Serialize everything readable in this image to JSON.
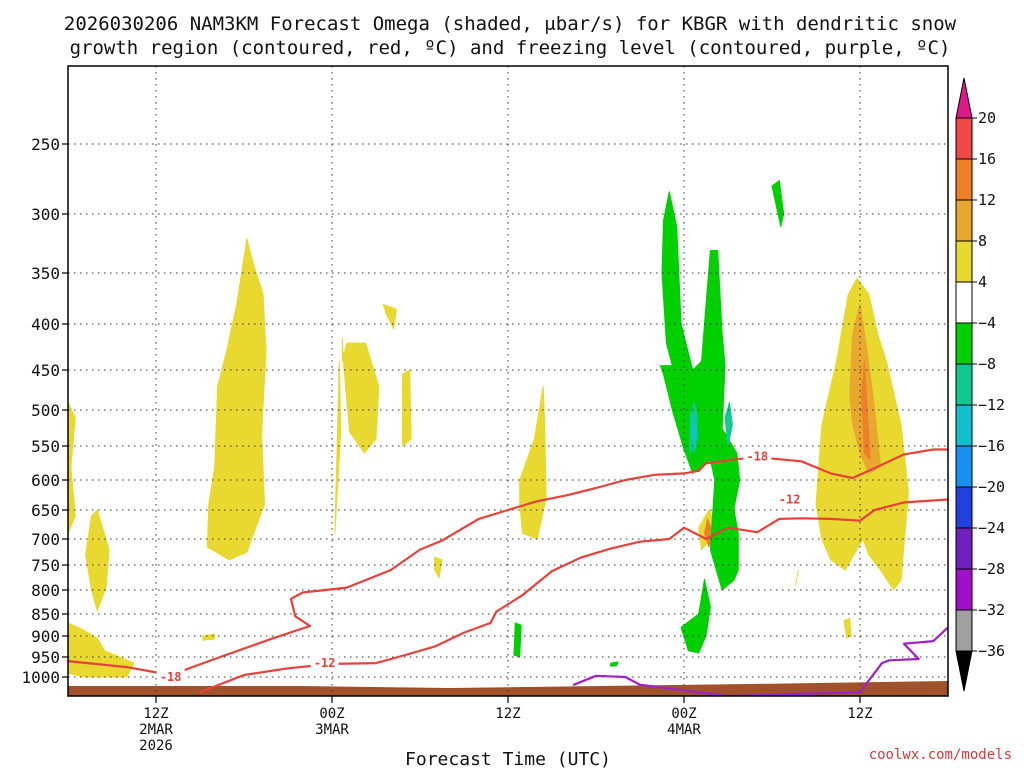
{
  "chart_data": {
    "type": "contour-time-height",
    "title_line1": "2026030206 NAM3KM Forecast Omega (shaded, μbar/s) for KBGR with dendritic snow",
    "title_line2": "growth region (contoured, red, ºC) and freezing level (contoured, purple, ºC)",
    "xlabel": "Forecast Time (UTC)",
    "credit": "coolwx.com/models",
    "x_range_hours": [
      6,
      66
    ],
    "x_ticks": [
      {
        "hour": 12,
        "lines": [
          "12Z",
          "2MAR",
          "2026"
        ]
      },
      {
        "hour": 24,
        "lines": [
          "00Z",
          "3MAR"
        ]
      },
      {
        "hour": 36,
        "lines": [
          "12Z"
        ]
      },
      {
        "hour": 48,
        "lines": [
          "00Z",
          "4MAR"
        ]
      },
      {
        "hour": 60,
        "lines": [
          "12Z"
        ]
      }
    ],
    "y_range_hPa": [
      1025,
      200
    ],
    "y_ticks": [
      250,
      300,
      350,
      400,
      450,
      500,
      550,
      600,
      650,
      700,
      750,
      800,
      850,
      900,
      950,
      1000
    ],
    "colorbar": {
      "labels": [
        "20",
        "16",
        "12",
        "8",
        "4",
        "−4",
        "−8",
        "−12",
        "−16",
        "−20",
        "−24",
        "−28",
        "−32",
        "−36"
      ],
      "bins": [
        {
          "lo": 20,
          "hi": 99,
          "color": "#e0198a"
        },
        {
          "lo": 16,
          "hi": 20,
          "color": "#f04848"
        },
        {
          "lo": 12,
          "hi": 16,
          "color": "#f08028"
        },
        {
          "lo": 8,
          "hi": 12,
          "color": "#e8a830"
        },
        {
          "lo": 4,
          "hi": 8,
          "color": "#e8d830"
        },
        {
          "lo": -4,
          "hi": 4,
          "color": "#ffffff"
        },
        {
          "lo": -8,
          "hi": -4,
          "color": "#00d000"
        },
        {
          "lo": -12,
          "hi": -8,
          "color": "#10c890"
        },
        {
          "lo": -16,
          "hi": -12,
          "color": "#10c0d0"
        },
        {
          "lo": -20,
          "hi": -16,
          "color": "#1890f0"
        },
        {
          "lo": -24,
          "hi": -20,
          "color": "#2040e0"
        },
        {
          "lo": -28,
          "hi": -24,
          "color": "#7020c0"
        },
        {
          "lo": -32,
          "hi": -28,
          "color": "#a010c8"
        },
        {
          "lo": -36,
          "hi": -32,
          "color": "#a0a0a0"
        },
        {
          "lo": -99,
          "hi": -36,
          "color": "#000000"
        }
      ]
    },
    "contour_labels": [
      {
        "text": "-18",
        "hour": 13,
        "hPa": 1000
      },
      {
        "text": "-12",
        "hour": 23.5,
        "hPa": 965
      },
      {
        "text": "-18",
        "hour": 53,
        "hPa": 565
      },
      {
        "text": "-12",
        "hour": 55.2,
        "hPa": 632
      }
    ],
    "isotherm_minus18": [
      [
        6,
        960
      ],
      [
        10,
        975
      ],
      [
        13,
        995
      ],
      [
        16,
        955
      ],
      [
        20,
        905
      ],
      [
        22.5,
        877
      ],
      [
        21.5,
        855
      ],
      [
        21.2,
        818
      ],
      [
        22,
        805
      ],
      [
        25,
        795
      ],
      [
        28,
        760
      ],
      [
        30,
        720
      ],
      [
        31.5,
        703
      ],
      [
        34,
        665
      ],
      [
        36,
        650
      ],
      [
        38,
        635
      ],
      [
        40,
        625
      ],
      [
        42,
        613
      ],
      [
        44,
        600
      ],
      [
        46,
        592
      ],
      [
        48,
        590
      ],
      [
        49,
        586
      ],
      [
        49.5,
        575
      ],
      [
        51.5,
        569
      ],
      [
        53,
        566
      ],
      [
        56,
        572
      ],
      [
        58,
        590
      ],
      [
        59.5,
        597
      ],
      [
        61,
        582
      ],
      [
        63,
        562
      ],
      [
        65,
        555
      ],
      [
        66,
        555
      ]
    ],
    "isotherm_minus12": [
      [
        15,
        1020
      ],
      [
        18,
        995
      ],
      [
        21,
        978
      ],
      [
        24,
        967
      ],
      [
        27,
        965
      ],
      [
        29,
        945
      ],
      [
        31,
        925
      ],
      [
        33,
        892
      ],
      [
        34.8,
        870
      ],
      [
        35.2,
        845
      ],
      [
        37,
        810
      ],
      [
        39,
        762
      ],
      [
        41,
        735
      ],
      [
        43,
        718
      ],
      [
        45,
        705
      ],
      [
        47,
        700
      ],
      [
        48,
        680
      ],
      [
        49,
        693
      ],
      [
        49.5,
        700
      ],
      [
        51,
        680
      ],
      [
        53,
        688
      ],
      [
        54.5,
        665
      ],
      [
        56,
        664
      ],
      [
        58,
        665
      ],
      [
        60,
        668
      ],
      [
        61,
        650
      ],
      [
        63,
        637
      ],
      [
        66,
        632
      ]
    ],
    "freezing_level": [
      [
        40.5,
        1010
      ],
      [
        42,
        997
      ],
      [
        44,
        1000
      ],
      [
        45,
        1010
      ],
      [
        51,
        1027
      ],
      [
        60,
        1020
      ],
      [
        61.5,
        965
      ],
      [
        62,
        958
      ],
      [
        64,
        955
      ],
      [
        63,
        918
      ],
      [
        65,
        912
      ],
      [
        66,
        880
      ]
    ],
    "omega_areas": [
      {
        "value": 5,
        "pts": [
          [
            6,
            490
          ],
          [
            6.5,
            510
          ],
          [
            6.2,
            580
          ],
          [
            6.5,
            660
          ],
          [
            6,
            690
          ]
        ]
      },
      {
        "value": 5,
        "pts": [
          [
            7.2,
            730
          ],
          [
            7.6,
            660
          ],
          [
            8,
            650
          ],
          [
            8.8,
            720
          ],
          [
            8.6,
            795
          ],
          [
            8,
            843
          ],
          [
            7.6,
            800
          ]
        ]
      },
      {
        "value": 5,
        "pts": [
          [
            6,
            870
          ],
          [
            7,
            885
          ],
          [
            8,
            905
          ],
          [
            8.5,
            935
          ],
          [
            10.5,
            965
          ],
          [
            10,
            1000
          ],
          [
            7,
            1000
          ],
          [
            6,
            990
          ]
        ]
      },
      {
        "value": 5,
        "pts": [
          [
            15.5,
            715
          ],
          [
            15.6,
            640
          ],
          [
            16,
            580
          ],
          [
            16.2,
            470
          ],
          [
            16.8,
            430
          ],
          [
            17.5,
            380
          ],
          [
            18.2,
            320
          ],
          [
            18.6,
            340
          ],
          [
            19.3,
            370
          ],
          [
            19.5,
            430
          ],
          [
            19.2,
            530
          ],
          [
            19.4,
            640
          ],
          [
            18.2,
            725
          ],
          [
            17,
            740
          ]
        ]
      },
      {
        "value": 5,
        "pts": [
          [
            15.2,
            900
          ],
          [
            16,
            895
          ],
          [
            16,
            907
          ],
          [
            15.2,
            910
          ]
        ]
      },
      {
        "value": 5,
        "pts": [
          [
            24.7,
            415
          ],
          [
            24.8,
            445
          ],
          [
            25.2,
            530
          ],
          [
            26.2,
            560
          ],
          [
            27,
            540
          ],
          [
            27.2,
            470
          ],
          [
            26.3,
            420
          ],
          [
            25,
            420
          ],
          [
            24.7,
            440
          ]
        ]
      },
      {
        "value": 5,
        "pts": [
          [
            24.2,
            690
          ],
          [
            24.6,
            530
          ],
          [
            24.5,
            440
          ]
        ]
      },
      {
        "value": 5,
        "pts": [
          [
            27.5,
            380
          ],
          [
            28.4,
            385
          ],
          [
            28.2,
            405
          ],
          [
            27.7,
            390
          ]
        ]
      },
      {
        "value": 5,
        "pts": [
          [
            28.8,
            455
          ],
          [
            29.3,
            450
          ],
          [
            29.4,
            540
          ],
          [
            28.8,
            550
          ]
        ]
      },
      {
        "value": 5,
        "pts": [
          [
            36.8,
            600
          ],
          [
            37.8,
            540
          ],
          [
            38.4,
            470
          ],
          [
            38.5,
            520
          ],
          [
            38.6,
            630
          ],
          [
            38,
            700
          ],
          [
            37,
            690
          ],
          [
            36.8,
            640
          ]
        ]
      },
      {
        "value": 5,
        "pts": [
          [
            31,
            735
          ],
          [
            31.5,
            740
          ],
          [
            31.3,
            775
          ],
          [
            31,
            760
          ]
        ]
      },
      {
        "value": 5,
        "pts": [
          [
            55.6,
            790
          ],
          [
            55.8,
            760
          ]
        ]
      },
      {
        "value": 5,
        "pts": [
          [
            57,
            640
          ],
          [
            57.4,
            520
          ],
          [
            58.4,
            440
          ],
          [
            59.2,
            370
          ],
          [
            59.8,
            355
          ],
          [
            60.6,
            370
          ],
          [
            61.2,
            410
          ],
          [
            61.8,
            440
          ],
          [
            62.8,
            520
          ],
          [
            63.3,
            620
          ],
          [
            62.8,
            780
          ],
          [
            62.3,
            800
          ],
          [
            61.4,
            760
          ],
          [
            60.6,
            730
          ],
          [
            60.2,
            700
          ],
          [
            59,
            760
          ],
          [
            58,
            740
          ],
          [
            57.4,
            700
          ]
        ]
      },
      {
        "value": 5,
        "pts": [
          [
            58.9,
            865
          ],
          [
            59.3,
            860
          ],
          [
            59.4,
            900
          ],
          [
            59.1,
            905
          ]
        ]
      },
      {
        "value": 5,
        "pts": [
          [
            49,
            680
          ],
          [
            49.7,
            650
          ],
          [
            50.3,
            680
          ],
          [
            50.2,
            720
          ],
          [
            49.7,
            705
          ],
          [
            49.2,
            720
          ]
        ]
      },
      {
        "value": 9,
        "pts": [
          [
            59.3,
            480
          ],
          [
            59.5,
            410
          ],
          [
            60,
            380
          ],
          [
            60.5,
            430
          ],
          [
            61,
            500
          ],
          [
            61.4,
            580
          ],
          [
            60.6,
            590
          ],
          [
            60,
            560
          ],
          [
            59.5,
            520
          ]
        ]
      },
      {
        "value": 13,
        "pts": [
          [
            60.1,
            480
          ],
          [
            60.3,
            440
          ],
          [
            60.5,
            500
          ],
          [
            60.7,
            570
          ],
          [
            60.3,
            560
          ]
        ]
      },
      {
        "value": 13,
        "pts": [
          [
            49.4,
            690
          ],
          [
            49.6,
            665
          ],
          [
            50,
            690
          ],
          [
            49.7,
            715
          ]
        ]
      },
      {
        "value": -6,
        "pts": [
          [
            46.4,
            445
          ],
          [
            47.2,
            445
          ],
          [
            46.8,
            420
          ],
          [
            46.5,
            350
          ],
          [
            46.6,
            305
          ],
          [
            47,
            283
          ],
          [
            47.5,
            310
          ],
          [
            47.8,
            400
          ],
          [
            48.6,
            450
          ],
          [
            49.2,
            440
          ],
          [
            49.5,
            380
          ],
          [
            49.8,
            330
          ],
          [
            50.3,
            330
          ],
          [
            50.6,
            410
          ],
          [
            50.8,
            445
          ],
          [
            50.6,
            525
          ],
          [
            51.6,
            560
          ],
          [
            51.8,
            600
          ],
          [
            51.4,
            648
          ],
          [
            51.7,
            690
          ],
          [
            51.7,
            760
          ],
          [
            51.4,
            780
          ],
          [
            50.6,
            800
          ],
          [
            50.2,
            760
          ],
          [
            49.8,
            720
          ],
          [
            50.1,
            600
          ],
          [
            49.8,
            570
          ],
          [
            48.6,
            590
          ],
          [
            48,
            555
          ],
          [
            47.2,
            500
          ],
          [
            46.6,
            455
          ]
        ]
      },
      {
        "value": -6,
        "pts": [
          [
            49.4,
            778
          ],
          [
            49.8,
            835
          ],
          [
            49.5,
            900
          ],
          [
            49,
            940
          ],
          [
            48.3,
            935
          ],
          [
            47.8,
            880
          ],
          [
            49,
            850
          ]
        ]
      },
      {
        "value": -6,
        "pts": [
          [
            54,
            279
          ],
          [
            54.5,
            275
          ],
          [
            54.8,
            300
          ],
          [
            54.6,
            310
          ]
        ]
      },
      {
        "value": -6,
        "pts": [
          [
            36.5,
            870
          ],
          [
            36.9,
            875
          ],
          [
            36.8,
            950
          ],
          [
            36.4,
            945
          ]
        ]
      },
      {
        "value": -6,
        "pts": [
          [
            43,
            965
          ],
          [
            43.5,
            962
          ],
          [
            43.4,
            972
          ],
          [
            43,
            973
          ]
        ]
      },
      {
        "value": -10,
        "pts": [
          [
            48.4,
            510
          ],
          [
            48.7,
            490
          ],
          [
            48.9,
            510
          ],
          [
            48.7,
            550
          ],
          [
            48.4,
            560
          ]
        ]
      },
      {
        "value": -10,
        "pts": [
          [
            50.8,
            510
          ],
          [
            51.1,
            490
          ],
          [
            51.3,
            520
          ],
          [
            51,
            550
          ]
        ]
      },
      {
        "value": -14,
        "pts": [
          [
            48.6,
            525
          ],
          [
            48.8,
            505
          ],
          [
            48.9,
            535
          ],
          [
            48.7,
            560
          ]
        ]
      }
    ]
  }
}
